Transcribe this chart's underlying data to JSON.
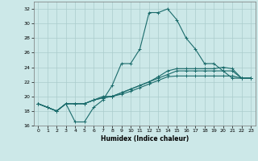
{
  "title": "",
  "xlabel": "Humidex (Indice chaleur)",
  "xlim": [
    -0.5,
    23.5
  ],
  "ylim": [
    16,
    33
  ],
  "xticks": [
    0,
    1,
    2,
    3,
    4,
    5,
    6,
    7,
    8,
    9,
    10,
    11,
    12,
    13,
    14,
    15,
    16,
    17,
    18,
    19,
    20,
    21,
    22,
    23
  ],
  "yticks": [
    16,
    18,
    20,
    22,
    24,
    26,
    28,
    30,
    32
  ],
  "bg_color": "#cce8e8",
  "grid_color": "#aacccc",
  "line_color": "#1a6b6b",
  "line1": [
    19,
    18.5,
    18,
    19,
    16.5,
    16.5,
    18.5,
    19.5,
    21.5,
    24.5,
    24.5,
    26.5,
    31.5,
    31.5,
    32,
    30.5,
    28,
    26.5,
    24.5,
    24.5,
    23.5,
    22.5,
    22.5,
    22.5
  ],
  "line2": [
    19,
    18.5,
    18,
    19,
    19,
    19,
    19.5,
    20,
    20,
    20.5,
    21,
    21.5,
    22,
    22.5,
    23,
    23.5,
    23.5,
    23.5,
    23.5,
    23.5,
    23.5,
    23.5,
    22.5,
    22.5
  ],
  "line3": [
    19,
    18.5,
    18,
    19,
    19,
    19,
    19.5,
    19.8,
    20,
    20.3,
    20.7,
    21.2,
    21.7,
    22.2,
    22.7,
    22.8,
    22.8,
    22.8,
    22.8,
    22.8,
    22.8,
    22.8,
    22.5,
    22.5
  ],
  "line4": [
    19,
    18.5,
    18,
    19,
    19,
    19,
    19.5,
    19.8,
    20,
    20.5,
    21,
    21.5,
    22,
    22.7,
    23.5,
    23.8,
    23.8,
    23.8,
    23.8,
    23.8,
    24.0,
    23.8,
    22.5,
    22.5
  ]
}
